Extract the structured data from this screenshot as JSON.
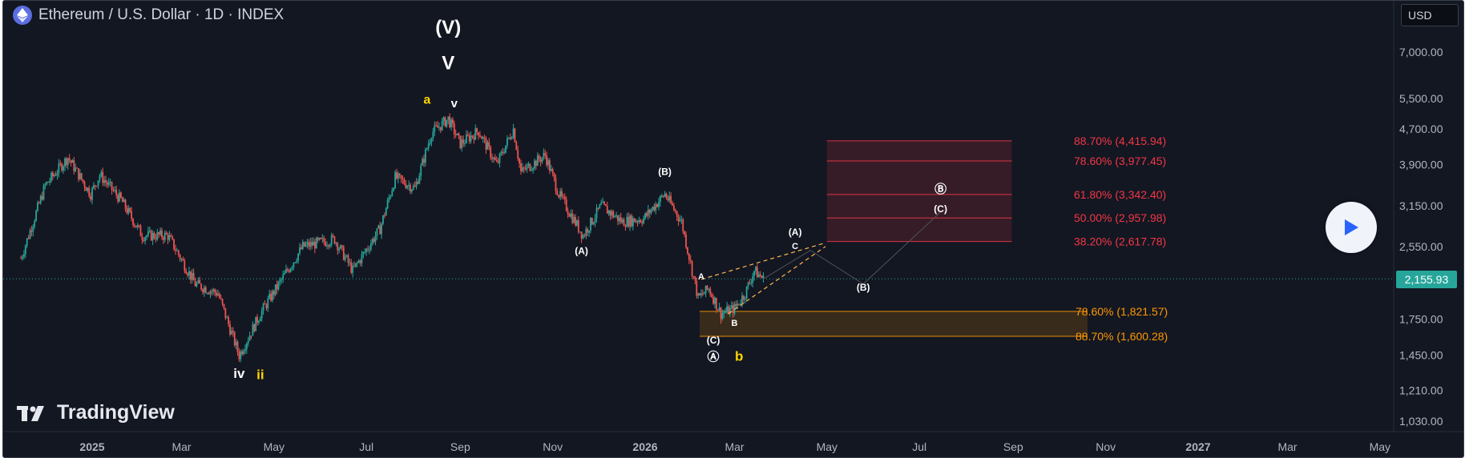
{
  "header": {
    "title": "Ethereum / U.S. Dollar · 1D · INDEX"
  },
  "currency_button": {
    "label": "USD"
  },
  "branding": {
    "label": "TradingView"
  },
  "current_price": {
    "label": "2,155.93",
    "value": 2155.93,
    "color": "#26a69a"
  },
  "icons": [
    "ethereum-logo-icon",
    "play-icon",
    "tradingview-logo-icon"
  ],
  "chart_data": {
    "type": "candlestick",
    "title": "Ethereum / U.S. Dollar · 1D · INDEX",
    "x_axis": {
      "ticks": [
        {
          "label": "2025",
          "date": "2025-01-01",
          "bold": true
        },
        {
          "label": "Mar",
          "date": "2025-03-01"
        },
        {
          "label": "May",
          "date": "2025-05-01"
        },
        {
          "label": "Jul",
          "date": "2025-07-01"
        },
        {
          "label": "Sep",
          "date": "2025-09-01"
        },
        {
          "label": "Nov",
          "date": "2025-11-01"
        },
        {
          "label": "2026",
          "date": "2026-01-01",
          "bold": true
        },
        {
          "label": "Mar",
          "date": "2026-03-01"
        },
        {
          "label": "May",
          "date": "2026-05-01"
        },
        {
          "label": "Jul",
          "date": "2026-07-01"
        },
        {
          "label": "Sep",
          "date": "2026-09-01"
        },
        {
          "label": "Nov",
          "date": "2026-11-01"
        },
        {
          "label": "2027",
          "date": "2027-01-01",
          "bold": true
        },
        {
          "label": "Mar",
          "date": "2027-03-01"
        },
        {
          "label": "May",
          "date": "2027-05-01"
        }
      ]
    },
    "y_axis": {
      "scale": "log",
      "range": [
        950,
        8500
      ],
      "ticks": [
        {
          "label": "7,000.00",
          "value": 7000
        },
        {
          "label": "5,500.00",
          "value": 5500
        },
        {
          "label": "4,700.00",
          "value": 4700
        },
        {
          "label": "3,900.00",
          "value": 3900
        },
        {
          "label": "3,150.00",
          "value": 3150
        },
        {
          "label": "2,550.00",
          "value": 2550
        },
        {
          "label": "1,750.00",
          "value": 1750
        },
        {
          "label": "1,450.00",
          "value": 1450
        },
        {
          "label": "1,210.00",
          "value": 1210
        },
        {
          "label": "1,030.00",
          "value": 1030
        }
      ]
    },
    "price_path": [
      [
        "2024-11-15",
        2400
      ],
      [
        "2024-12-01",
        3500
      ],
      [
        "2024-12-16",
        4050
      ],
      [
        "2024-12-31",
        3350
      ],
      [
        "2025-01-06",
        3700
      ],
      [
        "2025-01-20",
        3250
      ],
      [
        "2025-02-03",
        2700
      ],
      [
        "2025-02-20",
        2700
      ],
      [
        "2025-03-10",
        2100
      ],
      [
        "2025-03-25",
        2000
      ],
      [
        "2025-04-08",
        1450
      ],
      [
        "2025-04-22",
        1800
      ],
      [
        "2025-05-08",
        2200
      ],
      [
        "2025-05-20",
        2550
      ],
      [
        "2025-06-10",
        2650
      ],
      [
        "2025-06-22",
        2250
      ],
      [
        "2025-07-10",
        2800
      ],
      [
        "2025-07-20",
        3650
      ],
      [
        "2025-08-02",
        3450
      ],
      [
        "2025-08-13",
        4600
      ],
      [
        "2025-08-24",
        4950
      ],
      [
        "2025-09-01",
        4350
      ],
      [
        "2025-09-13",
        4650
      ],
      [
        "2025-09-25",
        3900
      ],
      [
        "2025-10-06",
        4700
      ],
      [
        "2025-10-11",
        3750
      ],
      [
        "2025-10-27",
        4100
      ],
      [
        "2025-11-05",
        3350
      ],
      [
        "2025-11-21",
        2700
      ],
      [
        "2025-12-03",
        3150
      ],
      [
        "2025-12-17",
        2900
      ],
      [
        "2025-12-31",
        2950
      ],
      [
        "2026-01-14",
        3350
      ],
      [
        "2026-01-25",
        2900
      ],
      [
        "2026-02-05",
        1950
      ],
      [
        "2026-02-12",
        2050
      ],
      [
        "2026-02-20",
        1800
      ],
      [
        "2026-03-01",
        1850
      ],
      [
        "2026-03-08",
        2000
      ],
      [
        "2026-03-14",
        2250
      ],
      [
        "2026-03-20",
        2155.93
      ]
    ],
    "zones": [
      {
        "name": "upper-fib-zone",
        "x_start": "2026-05-01",
        "x_end": "2026-08-31",
        "y_top": 4415.94,
        "y_bottom": 2617.78,
        "color": "#f23645"
      },
      {
        "name": "lower-fib-zone",
        "x_start": "2026-02-06",
        "x_end": "2026-10-20",
        "y_top": 1821.57,
        "y_bottom": 1600.28,
        "color": "#ff9800"
      }
    ],
    "fib_levels": [
      {
        "label": "88.70% (4,415.94)",
        "value": 4415.94,
        "color": "#f23645"
      },
      {
        "label": "78.60% (3,977.45)",
        "value": 3977.45,
        "color": "#f23645"
      },
      {
        "label": "61.80% (3,342.40)",
        "value": 3342.4,
        "color": "#f23645"
      },
      {
        "label": "50.00% (2,957.98)",
        "value": 2957.98,
        "color": "#f23645"
      },
      {
        "label": "38.20% (2,617.78)",
        "value": 2617.78,
        "color": "#f23645"
      },
      {
        "label": "78.60% (1,821.57)",
        "value": 1821.57,
        "color": "#ff9800"
      },
      {
        "label": "88.70% (1,600.28)",
        "value": 1600.28,
        "color": "#ff9800"
      }
    ],
    "wave_labels": [
      {
        "text": "(V)",
        "date": "2025-08-24",
        "value": 7700,
        "color": "#ffffff",
        "size": 24
      },
      {
        "text": "V",
        "date": "2025-08-24",
        "value": 6400,
        "color": "#ffffff",
        "size": 24
      },
      {
        "text": "a",
        "date": "2025-08-10",
        "value": 5350,
        "color": "#ffd600",
        "size": 16
      },
      {
        "text": "v",
        "date": "2025-08-28",
        "value": 5250,
        "color": "#ffffff",
        "size": 15
      },
      {
        "text": "iv",
        "date": "2025-04-08",
        "value": 1290,
        "color": "#ffffff",
        "size": 17
      },
      {
        "text": "ii",
        "date": "2025-04-22",
        "value": 1280,
        "color": "#ffd600",
        "size": 17
      },
      {
        "text": "(B)",
        "date": "2026-01-14",
        "value": 3700,
        "color": "#ffffff",
        "size": 12
      },
      {
        "text": "(A)",
        "date": "2025-11-20",
        "value": 2450,
        "color": "#ffffff",
        "size": 12
      },
      {
        "text": "A",
        "date": "2026-02-07",
        "value": 2150,
        "color": "#ffffff",
        "size": 11
      },
      {
        "text": "B",
        "date": "2026-03-01",
        "value": 1690,
        "color": "#ffffff",
        "size": 11
      },
      {
        "text": "C",
        "date": "2026-04-10",
        "value": 2520,
        "color": "#ffffff",
        "size": 11
      },
      {
        "text": "(A)",
        "date": "2026-04-10",
        "value": 2700,
        "color": "#ffffff",
        "size": 12
      },
      {
        "text": "(C)",
        "date": "2026-02-15",
        "value": 1540,
        "color": "#ffffff",
        "size": 12
      },
      {
        "text": "Ⓐ",
        "date": "2026-02-15",
        "value": 1410,
        "color": "#ffffff",
        "size": 15
      },
      {
        "text": "b",
        "date": "2026-03-04",
        "value": 1410,
        "color": "#ffd600",
        "size": 17
      },
      {
        "text": "(B)",
        "date": "2026-05-25",
        "value": 2030,
        "color": "#ffffff",
        "size": 12
      },
      {
        "text": "Ⓑ",
        "date": "2026-07-15",
        "value": 3370,
        "color": "#ffffff",
        "size": 15
      },
      {
        "text": "(C)",
        "date": "2026-07-15",
        "value": 3050,
        "color": "#ffffff",
        "size": 12
      }
    ],
    "projection_path": [
      [
        "2026-03-20",
        2155.93
      ],
      [
        "2026-04-20",
        2500
      ],
      [
        "2026-05-25",
        2100
      ],
      [
        "2026-07-15",
        3050
      ]
    ],
    "wedge_lines": [
      {
        "from": [
          "2026-02-07",
          2150
        ],
        "to": [
          "2026-04-30",
          2600
        ]
      },
      {
        "from": [
          "2026-02-25",
          1800
        ],
        "to": [
          "2026-04-30",
          2550
        ]
      }
    ],
    "legend": "none",
    "grid": false
  }
}
